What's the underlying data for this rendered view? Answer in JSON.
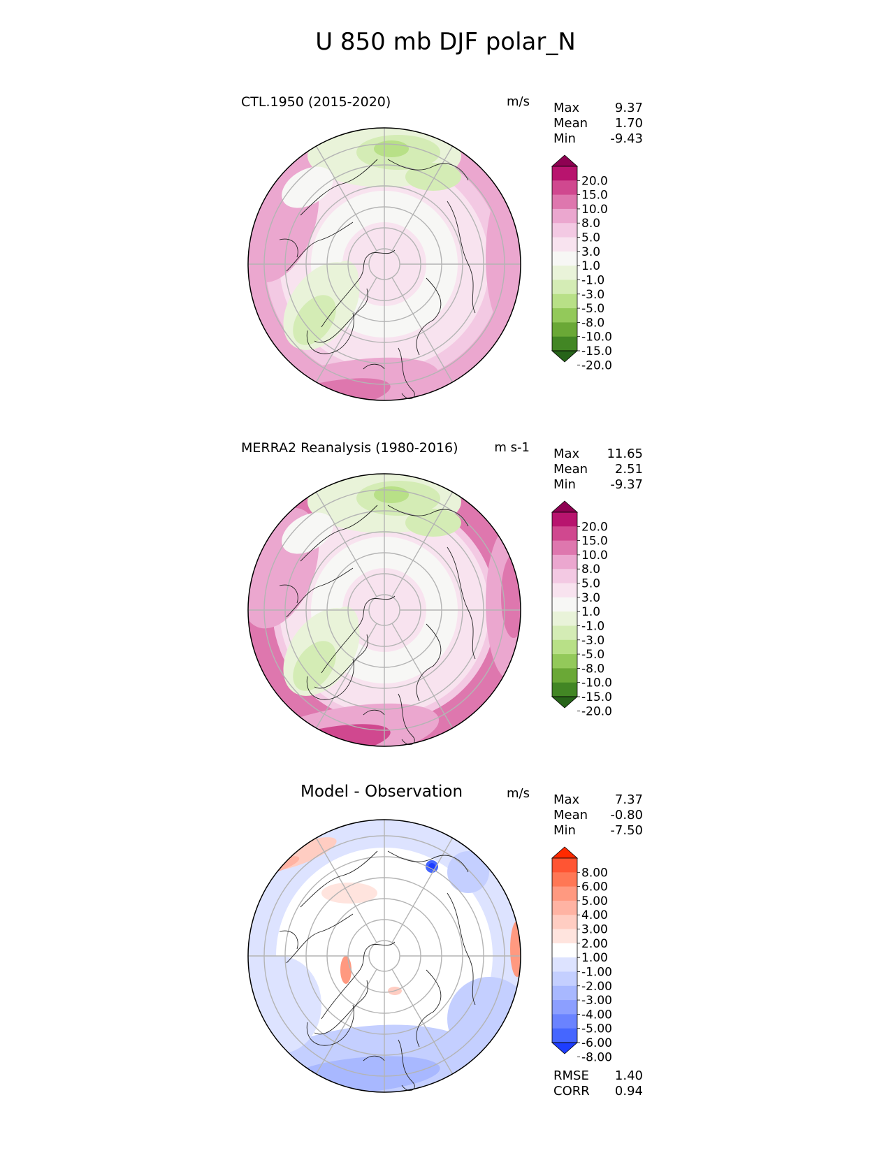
{
  "title": "U 850 mb DJF polar_N",
  "panels": [
    {
      "id": "test",
      "title": "CTL.1950 (2015-2020)",
      "units": "m/s",
      "stats": [
        {
          "label": "Max",
          "value": "9.37"
        },
        {
          "label": "Mean",
          "value": "1.70"
        },
        {
          "label": "Min",
          "value": "-9.43"
        }
      ]
    },
    {
      "id": "reference",
      "title": "MERRA2 Reanalysis (1980-2016)",
      "units": "m s-1",
      "stats": [
        {
          "label": "Max",
          "value": "11.65"
        },
        {
          "label": "Mean",
          "value": "2.51"
        },
        {
          "label": "Min",
          "value": "-9.37"
        }
      ]
    },
    {
      "id": "diff",
      "title": "Model - Observation",
      "units": "m/s",
      "stats": [
        {
          "label": "Max",
          "value": "7.37"
        },
        {
          "label": "Mean",
          "value": "-0.80"
        },
        {
          "label": "Min",
          "value": "-7.50"
        }
      ],
      "extra_stats": [
        {
          "label": "RMSE",
          "value": "1.40"
        },
        {
          "label": "CORR",
          "value": "0.94"
        }
      ]
    }
  ],
  "colorbars": {
    "field": {
      "levels": [
        "20.0",
        "15.0",
        "10.0",
        "8.0",
        "5.0",
        "3.0",
        "1.0",
        "-1.0",
        "-3.0",
        "-5.0",
        "-8.0",
        "-10.0",
        "-15.0",
        "-20.0"
      ],
      "colors": [
        "#8e0152",
        "#b8146e",
        "#d0488f",
        "#de77ae",
        "#eba7cf",
        "#f3c9e3",
        "#f8e3ef",
        "#f7f7f5",
        "#e9f3d9",
        "#d4ecb5",
        "#b8e087",
        "#93c95a",
        "#6aa836",
        "#428624",
        "#276419"
      ]
    },
    "diff": {
      "levels": [
        "8.00",
        "6.00",
        "5.00",
        "4.00",
        "3.00",
        "2.00",
        "1.00",
        "-1.00",
        "-2.00",
        "-3.00",
        "-4.00",
        "-5.00",
        "-6.00",
        "-8.00"
      ],
      "colors": [
        "#ff2a00",
        "#ff5533",
        "#ff7755",
        "#ff9980",
        "#ffb3a3",
        "#ffcdc2",
        "#ffe4de",
        "#ffffff",
        "#dde3ff",
        "#c4cfff",
        "#a8b8ff",
        "#8c9fff",
        "#6a83ff",
        "#4566ff",
        "#1d3dff"
      ]
    }
  },
  "chart_data": [
    {
      "type": "heatmap",
      "title": "CTL.1950 (2015-2020)",
      "projection": "north polar stereographic",
      "variable": "U 850 mb DJF",
      "units": "m/s",
      "stats": {
        "max": 9.37,
        "mean": 1.7,
        "min": -9.43
      },
      "contour_levels": [
        -20,
        -15,
        -10,
        -8,
        -5,
        -3,
        -1,
        1,
        3,
        5,
        8,
        10,
        15,
        20
      ],
      "palette": "PiYG (pink positive, green negative)"
    },
    {
      "type": "heatmap",
      "title": "MERRA2 Reanalysis (1980-2016)",
      "projection": "north polar stereographic",
      "variable": "U 850 mb DJF",
      "units": "m s-1",
      "stats": {
        "max": 11.65,
        "mean": 2.51,
        "min": -9.37
      },
      "contour_levels": [
        -20,
        -15,
        -10,
        -8,
        -5,
        -3,
        -1,
        1,
        3,
        5,
        8,
        10,
        15,
        20
      ],
      "palette": "PiYG (pink positive, green negative)"
    },
    {
      "type": "heatmap",
      "title": "Model - Observation",
      "projection": "north polar stereographic",
      "variable": "U 850 mb DJF",
      "units": "m/s",
      "stats": {
        "max": 7.37,
        "mean": -0.8,
        "min": -7.5,
        "rmse": 1.4,
        "corr": 0.94
      },
      "contour_levels": [
        -8,
        -6,
        -5,
        -4,
        -3,
        -2,
        -1,
        1,
        2,
        3,
        4,
        5,
        6,
        8
      ],
      "palette": "red positive, blue negative"
    }
  ]
}
